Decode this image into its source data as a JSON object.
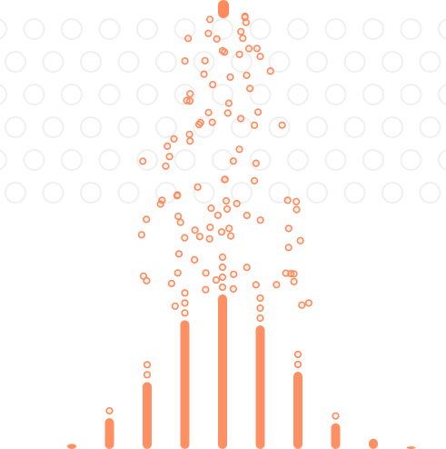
{
  "colors": {
    "ball": "#ff8a5c",
    "ball_fill": "rgba(255,138,92,0.12)",
    "peg": "#f0f0f0",
    "background": "#ffffff"
  },
  "board": {
    "peg_rows": 6,
    "bins": 11,
    "falling_balls_count": 100
  },
  "bins": {
    "fill_levels": [
      0.01,
      0.06,
      0.13,
      0.25,
      0.3,
      0.24,
      0.15,
      0.05,
      0.02,
      0.005,
      0.0
    ]
  }
}
